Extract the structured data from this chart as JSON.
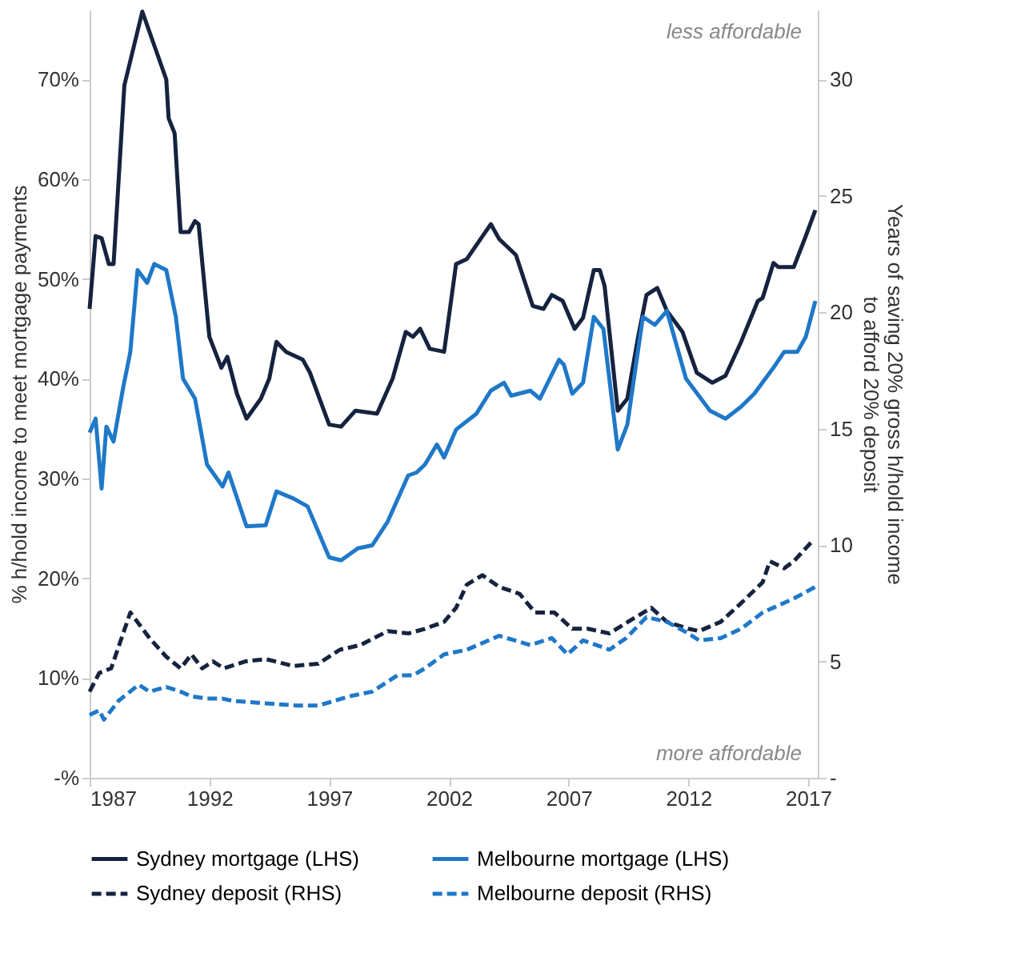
{
  "chart_data": {
    "type": "line",
    "ylabel": "% h/hold income to meet mortgage payments",
    "y2label": "Years of saving 20% gross h/hold income\nto afford 20% deposit",
    "annotations": [
      "less affordable",
      "more affordable"
    ],
    "xlim": [
      1987,
      2017.4
    ],
    "xticks": [
      1987,
      1992,
      1997,
      2002,
      2007,
      2012,
      2017
    ],
    "ylim": [
      0,
      77
    ],
    "yticks": [
      {
        "value": 0,
        "label": "-%"
      },
      {
        "value": 10,
        "label": "10%"
      },
      {
        "value": 20,
        "label": "20%"
      },
      {
        "value": 30,
        "label": "30%"
      },
      {
        "value": 40,
        "label": "40%"
      },
      {
        "value": 50,
        "label": "50%"
      },
      {
        "value": 60,
        "label": "60%"
      },
      {
        "value": 70,
        "label": "70%"
      }
    ],
    "y2lim": [
      0,
      33
    ],
    "y2ticks": [
      {
        "value": 0,
        "label": "-"
      },
      5,
      10,
      15,
      20,
      25,
      30
    ],
    "grid": false,
    "legend": "bottom",
    "series": [
      {
        "name": "Sydney mortgage (LHS)",
        "color": "#15233f",
        "line_style": "solid",
        "axis": "y",
        "x": [
          1987.0,
          1987.25,
          1987.5,
          1987.8,
          1988.0,
          1988.45,
          1989.2,
          1990.2,
          1990.3,
          1990.55,
          1990.8,
          1991.15,
          1991.4,
          1991.55,
          1992.0,
          1992.5,
          1992.75,
          1993.15,
          1993.55,
          1994.15,
          1994.5,
          1994.8,
          1995.2,
          1995.9,
          1996.2,
          1997.0,
          1997.5,
          1998.1,
          1999.0,
          1999.65,
          2000.2,
          2000.5,
          2000.8,
          2001.2,
          2001.8,
          2002.3,
          2002.75,
          2003.75,
          2004.1,
          2004.8,
          2005.5,
          2005.95,
          2006.3,
          2006.75,
          2007.25,
          2007.6,
          2008.05,
          2008.3,
          2008.5,
          2009.05,
          2009.45,
          2009.9,
          2010.25,
          2010.7,
          2011.1,
          2011.75,
          2012.35,
          2013.0,
          2013.55,
          2014.2,
          2014.9,
          2015.1,
          2015.55,
          2015.75,
          2016.4,
          2016.9,
          2017.3
        ],
        "values": [
          47.0,
          54.3,
          54.1,
          51.5,
          51.5,
          69.4,
          76.8,
          70.0,
          66.1,
          64.6,
          54.7,
          54.7,
          55.8,
          55.5,
          44.2,
          41.1,
          42.2,
          38.5,
          36.0,
          38.0,
          40.0,
          43.7,
          42.7,
          41.9,
          40.6,
          35.4,
          35.2,
          36.8,
          36.5,
          40.0,
          44.7,
          44.2,
          45.0,
          43.0,
          42.7,
          51.5,
          52.0,
          55.5,
          54.0,
          52.4,
          47.3,
          47.0,
          48.4,
          47.8,
          45.0,
          46.1,
          50.9,
          50.9,
          49.3,
          36.8,
          38.0,
          44.2,
          48.4,
          49.1,
          46.8,
          44.7,
          40.6,
          39.6,
          40.3,
          43.7,
          47.8,
          48.1,
          51.6,
          51.2,
          51.2,
          54.3,
          56.9
        ]
      },
      {
        "name": "Melbourne mortgage (LHS)",
        "color": "#1f78c8",
        "line_style": "solid",
        "axis": "y",
        "x": [
          1987.0,
          1987.25,
          1987.5,
          1987.7,
          1988.0,
          1988.4,
          1988.7,
          1989.0,
          1989.4,
          1989.7,
          1990.2,
          1990.6,
          1990.9,
          1991.4,
          1991.9,
          1992.55,
          1992.8,
          1993.55,
          1994.35,
          1994.8,
          1995.5,
          1996.1,
          1997.0,
          1997.5,
          1998.2,
          1998.8,
          1999.45,
          2000.3,
          2000.65,
          2001.0,
          2001.5,
          2001.8,
          2002.3,
          2003.15,
          2003.75,
          2004.3,
          2004.6,
          2005.4,
          2005.8,
          2006.6,
          2006.8,
          2007.15,
          2007.6,
          2008.05,
          2008.45,
          2009.05,
          2009.45,
          2010.1,
          2010.6,
          2011.1,
          2011.9,
          2012.9,
          2013.55,
          2014.2,
          2014.75,
          2015.55,
          2016.0,
          2016.55,
          2016.9,
          2017.3
        ],
        "values": [
          34.6,
          36.0,
          29.0,
          35.2,
          33.7,
          39.1,
          42.7,
          50.9,
          49.6,
          51.5,
          50.9,
          46.2,
          40.0,
          38.0,
          31.4,
          29.2,
          30.6,
          25.2,
          25.3,
          28.7,
          28.0,
          27.2,
          22.1,
          21.8,
          23.0,
          23.3,
          25.7,
          30.3,
          30.6,
          31.4,
          33.4,
          32.1,
          34.9,
          36.5,
          38.8,
          39.6,
          38.3,
          38.8,
          38.0,
          41.9,
          41.4,
          38.5,
          39.6,
          46.2,
          45.0,
          32.9,
          35.4,
          46.2,
          45.4,
          46.8,
          40.0,
          36.8,
          36.0,
          37.2,
          38.5,
          41.1,
          42.7,
          42.7,
          44.2,
          47.8
        ]
      },
      {
        "name": "Sydney deposit (RHS)",
        "color": "#15233f",
        "line_style": "dashed",
        "axis": "y2",
        "x": [
          1987.0,
          1987.4,
          1987.9,
          1988.7,
          1989.5,
          1990.2,
          1990.8,
          1991.25,
          1991.7,
          1992.15,
          1992.6,
          1993.5,
          1994.35,
          1995.5,
          1996.55,
          1997.45,
          1998.3,
          1999.45,
          2000.3,
          2001.0,
          2001.8,
          2002.3,
          2002.75,
          2003.4,
          2004.1,
          2004.95,
          2005.6,
          2006.4,
          2007.15,
          2007.8,
          2008.7,
          2009.8,
          2010.45,
          2011.1,
          2012.0,
          2012.45,
          2013.35,
          2014.2,
          2015.1,
          2015.4,
          2016.0,
          2016.4,
          2017.2
        ],
        "values": [
          3.7,
          4.5,
          4.7,
          7.1,
          6.0,
          5.2,
          4.7,
          5.3,
          4.7,
          5.0,
          4.7,
          5.0,
          5.1,
          4.8,
          4.9,
          5.5,
          5.7,
          6.3,
          6.2,
          6.4,
          6.7,
          7.3,
          8.3,
          8.7,
          8.2,
          7.9,
          7.1,
          7.1,
          6.4,
          6.4,
          6.2,
          6.9,
          7.3,
          6.7,
          6.4,
          6.3,
          6.7,
          7.5,
          8.4,
          9.3,
          9.0,
          9.3,
          10.2
        ]
      },
      {
        "name": "Melbourne deposit (RHS)",
        "color": "#1f78c8",
        "line_style": "dashed",
        "axis": "y2",
        "x": [
          1987.0,
          1987.4,
          1987.6,
          1988.2,
          1989.05,
          1989.5,
          1990.2,
          1990.8,
          1991.25,
          1991.9,
          1992.55,
          1993.0,
          1994.35,
          1995.65,
          1996.55,
          1997.85,
          1998.8,
          1999.85,
          2000.5,
          2001.0,
          2001.8,
          2002.75,
          2004.1,
          2005.4,
          2006.3,
          2006.95,
          2007.6,
          2008.7,
          2009.4,
          2010.25,
          2011.1,
          2012.0,
          2012.45,
          2013.35,
          2014.2,
          2015.1,
          2015.75,
          2016.4,
          2017.3
        ],
        "values": [
          2.7,
          2.9,
          2.5,
          3.3,
          4.0,
          3.7,
          3.9,
          3.7,
          3.5,
          3.4,
          3.4,
          3.3,
          3.2,
          3.1,
          3.1,
          3.5,
          3.7,
          4.4,
          4.4,
          4.7,
          5.3,
          5.5,
          6.1,
          5.7,
          6.0,
          5.3,
          5.9,
          5.5,
          6.0,
          6.9,
          6.7,
          6.2,
          5.9,
          6.0,
          6.4,
          7.1,
          7.4,
          7.7,
          8.2
        ]
      }
    ]
  }
}
